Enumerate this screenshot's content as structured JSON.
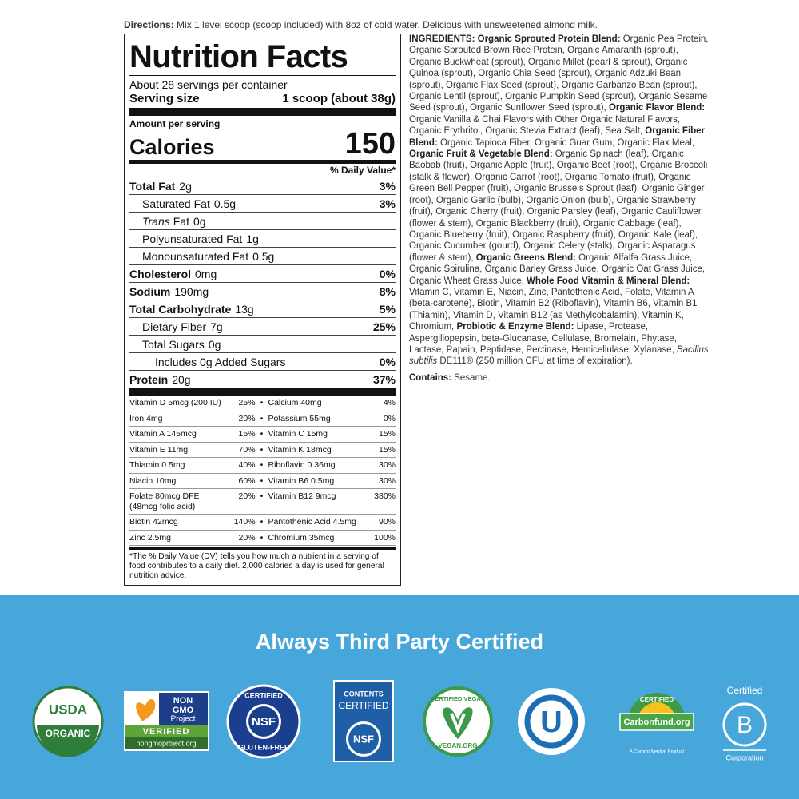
{
  "directions": {
    "label": "Directions:",
    "text": "Mix 1 level scoop (scoop included) with 8oz of cold water. Delicious with unsweetened almond milk."
  },
  "nutrition_facts": {
    "title": "Nutrition Facts",
    "servings": "About 28 servings per container",
    "serving_size": {
      "label": "Serving size",
      "value": "1 scoop (about 38g)"
    },
    "amount_per_serving": "Amount per serving",
    "calories": {
      "label": "Calories",
      "value": 150
    },
    "daily_value_header": "% Daily Value*",
    "rows": [
      {
        "name": "Total Fat",
        "amount": "2g",
        "dv": "3%",
        "bold": true
      },
      {
        "name": "Saturated Fat",
        "amount": "0.5g",
        "dv": "3%",
        "indent": 1
      },
      {
        "name_italic": "Trans",
        "name": "Fat",
        "amount": "0g",
        "indent": 1
      },
      {
        "name": "Polyunsaturated Fat",
        "amount": "1g",
        "indent": 1
      },
      {
        "name": "Monounsaturated Fat",
        "amount": "0.5g",
        "indent": 1
      },
      {
        "name": "Cholesterol",
        "amount": "0mg",
        "dv": "0%",
        "bold": true
      },
      {
        "name": "Sodium",
        "amount": "190mg",
        "dv": "8%",
        "bold": true
      },
      {
        "name": "Total Carbohydrate",
        "amount": "13g",
        "dv": "5%",
        "bold": true
      },
      {
        "name": "Dietary Fiber",
        "amount": "7g",
        "dv": "25%",
        "indent": 1
      },
      {
        "name": "Total Sugars",
        "amount": "0g",
        "indent": 1
      },
      {
        "name": "Includes 0g Added Sugars",
        "dv": "0%",
        "indent": 2
      },
      {
        "name": "Protein",
        "amount": "20g",
        "dv": "37%",
        "bold": true
      }
    ],
    "micronutrients": [
      {
        "left": {
          "name": "Vitamin D 5mcg (200 IU)",
          "dv": "25%"
        },
        "right": {
          "name": "Calcium 40mg",
          "dv": "4%"
        }
      },
      {
        "left": {
          "name": "Iron 4mg",
          "dv": "20%"
        },
        "right": {
          "name": "Potassium 55mg",
          "dv": "0%"
        }
      },
      {
        "left": {
          "name": "Vitamin A 145mcg",
          "dv": "15%"
        },
        "right": {
          "name": "Vitamin C 15mg",
          "dv": "15%"
        }
      },
      {
        "left": {
          "name": "Vitamin E 11mg",
          "dv": "70%"
        },
        "right": {
          "name": "Vitamin K 18mcg",
          "dv": "15%"
        }
      },
      {
        "left": {
          "name": "Thiamin 0.5mg",
          "dv": "40%"
        },
        "right": {
          "name": "Riboflavin 0.36mg",
          "dv": "30%"
        }
      },
      {
        "left": {
          "name": "Niacin 10mg",
          "dv": "60%"
        },
        "right": {
          "name": "Vitamin B6 0.5mg",
          "dv": "30%"
        }
      },
      {
        "left": {
          "name": "Folate 80mcg DFE (48mcg folic acid)",
          "dv": "20%"
        },
        "right": {
          "name": "Vitamin B12 9mcg",
          "dv": "380%"
        }
      },
      {
        "left": {
          "name": "Biotin 42mcg",
          "dv": "140%"
        },
        "right": {
          "name": "Pantothenic Acid 4.5mg",
          "dv": "90%"
        }
      },
      {
        "left": {
          "name": "Zinc 2.5mg",
          "dv": "20%"
        },
        "right": {
          "name": "Chromium 35mcg",
          "dv": "100%"
        }
      }
    ],
    "footnote": "*The % Daily Value (DV) tells you how much a nutrient in a serving of food contributes to a daily diet. 2,000 calories a day is used for general nutrition advice."
  },
  "ingredients": {
    "segments": [
      {
        "text": "INGREDIENTS: ",
        "style": "bold"
      },
      {
        "text": "Organic Sprouted Protein Blend:",
        "style": "bold"
      },
      {
        "text": " Organic Pea Protein, Organic Sprouted Brown Rice Protein, Organic Amaranth (sprout), Organic Buckwheat (sprout), Organic Millet (pearl & sprout), Organic Quinoa (sprout), Organic Chia Seed (sprout), Organic Adzuki Bean (sprout), Organic Flax Seed (sprout), Organic Garbanzo Bean (sprout), Organic Lentil (sprout), Organic Pumpkin Seed (sprout), Organic Sesame Seed (sprout), Organic Sunflower Seed (sprout), "
      },
      {
        "text": "Organic Flavor Blend:",
        "style": "bold"
      },
      {
        "text": " Organic Vanilla & Chai Flavors with Other Organic Natural Flavors, Organic Erythritol, Organic Stevia Extract (leaf), Sea Salt, "
      },
      {
        "text": "Organic Fiber Blend:",
        "style": "bold"
      },
      {
        "text": " Organic Tapioca Fiber, Organic Guar Gum, Organic Flax Meal, "
      },
      {
        "text": "Organic Fruit & Vegetable Blend:",
        "style": "bold"
      },
      {
        "text": " Organic Spinach (leaf), Organic Baobab (fruit), Organic Apple (fruit), Organic Beet (root), Organic Broccoli (stalk & flower), Organic Carrot (root), Organic Tomato (fruit), Organic Green Bell Pepper (fruit), Organic Brussels Sprout (leaf), Organic Ginger (root), Organic Garlic (bulb), Organic Onion (bulb), Organic Strawberry (fruit), Organic Cherry (fruit), Organic Parsley (leaf), Organic Cauliflower (flower & stem), Organic Blackberry (fruit), Organic Cabbage (leaf), Organic Blueberry (fruit), Organic Raspberry (fruit), Organic Kale (leaf), Organic Cucumber (gourd), Organic Celery (stalk), Organic Asparagus (flower & stem), "
      },
      {
        "text": "Organic Greens Blend:",
        "style": "bold"
      },
      {
        "text": " Organic Alfalfa Grass Juice, Organic Spirulina, Organic Barley Grass Juice, Organic Oat Grass Juice, Organic Wheat Grass Juice, "
      },
      {
        "text": "Whole Food Vitamin & Mineral Blend:",
        "style": "bold"
      },
      {
        "text": " Vitamin C, Vitamin E, Niacin, Zinc, Pantothenic Acid, Folate, Vitamin A (beta-carotene), Biotin, Vitamin B2 (Riboflavin), Vitamin B6, Vitamin B1 (Thiamin), Vitamin D, Vitamin B12 (as Methylcobalamin), Vitamin K, Chromium, "
      },
      {
        "text": "Probiotic & Enzyme Blend:",
        "style": "bold"
      },
      {
        "text": " Lipase, Protease, Aspergillopepsin, beta-Glucanase, Cellulase, Bromelain, Phytase, Lactase, Papain, Peptidase, Pectinase, Hemicellulase, Xylanase, "
      },
      {
        "text": "Bacillus subtilis",
        "style": "italic"
      },
      {
        "text": " DE111® (250 million CFU at time of expiration)."
      }
    ],
    "contains": {
      "label": "Contains:",
      "text": "Sesame."
    }
  },
  "certifications": {
    "title": "Always Third Party Certified",
    "logos": [
      {
        "lines": [
          "USDA",
          "ORGANIC"
        ]
      },
      {
        "lines": [
          "NON",
          "GMO",
          "Project",
          "VERIFIED",
          "nongmoproject.org"
        ]
      },
      {
        "lines": [
          "CERTIFIED",
          "NSF",
          "GLUTEN-FREE"
        ]
      },
      {
        "lines": [
          "CONTENTS",
          "CERTIFIED",
          "NSF"
        ]
      },
      {
        "lines": [
          "CERTIFIED VEGAN",
          "VEGAN.ORG"
        ]
      },
      {
        "lines": [
          "U"
        ]
      },
      {
        "lines": [
          "CERTIFIED",
          "Carbonfund.org",
          "A Carbon Neutral Product"
        ]
      },
      {
        "lines": [
          "Certified",
          "B",
          "Corporation"
        ]
      }
    ]
  }
}
